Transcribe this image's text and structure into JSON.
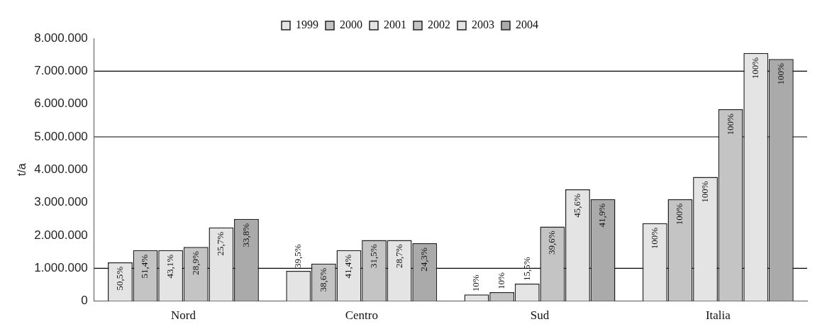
{
  "chart_data": {
    "type": "bar",
    "ylabel": "t/a",
    "categories": [
      "Nord",
      "Centro",
      "Sud",
      "Italia"
    ],
    "series": [
      {
        "name": "1999",
        "color": "#e4e4e4",
        "values": [
          1180000,
          920000,
          200000,
          2370000
        ]
      },
      {
        "name": "2000",
        "color": "#c4c4c4",
        "values": [
          1550000,
          1140000,
          270000,
          3100000
        ]
      },
      {
        "name": "2001",
        "color": "#e4e4e4",
        "values": [
          1550000,
          1550000,
          530000,
          3780000
        ]
      },
      {
        "name": "2002",
        "color": "#c4c4c4",
        "values": [
          1650000,
          1860000,
          2270000,
          5840000
        ]
      },
      {
        "name": "2003",
        "color": "#e4e4e4",
        "values": [
          2240000,
          1860000,
          3400000,
          7550000
        ]
      },
      {
        "name": "2004",
        "color": "#aaaaaa",
        "values": [
          2500000,
          1760000,
          3100000,
          7370000
        ]
      }
    ],
    "annotations": [
      "50,5%",
      "51,4%",
      "43,1%",
      "28,9%",
      "25,7%",
      "33,8%",
      "39,5%",
      "38,6%",
      "41,4%",
      "31,5%",
      "28,7%",
      "24,3%",
      "10%",
      "10%",
      "15,5%",
      "39,6%",
      "45,6%",
      "41,9%",
      "100%",
      "100%",
      "100%",
      "100%",
      "100%",
      "100%"
    ],
    "ylim": [
      0,
      8000000
    ],
    "yticks": [
      {
        "value": 0,
        "label": "0"
      },
      {
        "value": 1000000,
        "label": "1.000.000"
      },
      {
        "value": 2000000,
        "label": "2.000.000"
      },
      {
        "value": 3000000,
        "label": "3.000.000"
      },
      {
        "value": 4000000,
        "label": "4.000.000"
      },
      {
        "value": 5000000,
        "label": "5.000.000"
      },
      {
        "value": 6000000,
        "label": "6.000.000"
      },
      {
        "value": 7000000,
        "label": "7.000.000"
      },
      {
        "value": 8000000,
        "label": "8.000.000"
      }
    ],
    "ref_lines": [
      {
        "axis": "y",
        "value": 1000000,
        "color": "#000000"
      },
      {
        "axis": "y",
        "value": 5000000,
        "color": "#000000"
      },
      {
        "axis": "y",
        "value": 7000000,
        "color": "#000000"
      }
    ],
    "legend": "top",
    "grid": false
  }
}
